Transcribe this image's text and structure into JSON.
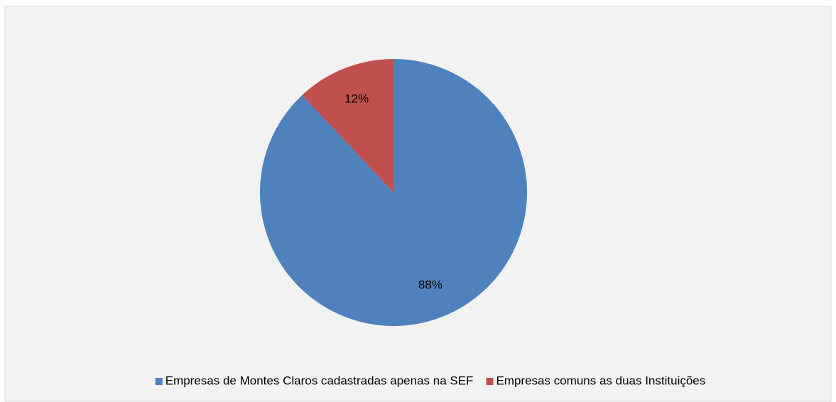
{
  "chart_data": {
    "type": "pie",
    "categories": [
      "Empresas de Montes Claros cadastradas apenas na SEF",
      "Empresas comuns as duas Instituições"
    ],
    "values": [
      88,
      12
    ],
    "value_labels": [
      "88%",
      "12%"
    ],
    "colors": [
      "#4f81bd",
      "#c0504d"
    ],
    "legend": "bottom"
  }
}
